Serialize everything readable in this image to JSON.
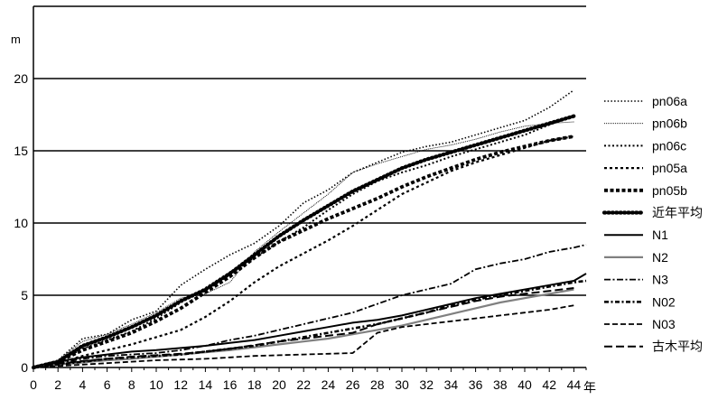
{
  "chart_data": {
    "type": "line",
    "title": "",
    "ylabel": "m",
    "xlabel": "年",
    "xlim": [
      0,
      45
    ],
    "ylim": [
      0,
      25
    ],
    "yticks": [
      0,
      5,
      10,
      15,
      20
    ],
    "xticks": [
      0,
      2,
      4,
      6,
      8,
      10,
      12,
      14,
      16,
      18,
      20,
      22,
      24,
      26,
      28,
      30,
      32,
      34,
      36,
      38,
      40,
      42,
      44
    ],
    "grid": "horizontal",
    "legend_position": "right",
    "series": [
      {
        "name": "pn06a",
        "style": "dotted-fine",
        "color": "#000000",
        "points": [
          [
            0,
            0
          ],
          [
            2,
            0.5
          ],
          [
            4,
            2
          ],
          [
            6,
            2.3
          ],
          [
            8,
            3.3
          ],
          [
            10,
            3.9
          ],
          [
            12,
            5.7
          ],
          [
            14,
            6.8
          ],
          [
            16,
            7.8
          ],
          [
            18,
            8.6
          ],
          [
            20,
            9.8
          ],
          [
            22,
            11.4
          ],
          [
            24,
            12.3
          ],
          [
            26,
            13.5
          ],
          [
            28,
            14.2
          ],
          [
            30,
            14.9
          ],
          [
            32,
            15.3
          ],
          [
            34,
            15.6
          ],
          [
            36,
            16.1
          ],
          [
            38,
            16.6
          ],
          [
            40,
            17.1
          ],
          [
            42,
            18.0
          ],
          [
            44,
            19.2
          ]
        ]
      },
      {
        "name": "pn06b",
        "style": "thin-dotted",
        "color": "#000000",
        "points": [
          [
            0,
            0
          ],
          [
            2,
            0.5
          ],
          [
            4,
            1.8
          ],
          [
            6,
            2.3
          ],
          [
            8,
            3.0
          ],
          [
            10,
            3.8
          ],
          [
            12,
            4.8
          ],
          [
            14,
            5.1
          ],
          [
            16,
            5.9
          ],
          [
            18,
            8.0
          ],
          [
            20,
            9.4
          ],
          [
            22,
            10.7
          ],
          [
            24,
            12.0
          ],
          [
            26,
            13.5
          ],
          [
            28,
            14.1
          ],
          [
            30,
            14.6
          ],
          [
            32,
            15.1
          ],
          [
            34,
            15.4
          ],
          [
            36,
            15.8
          ],
          [
            38,
            16.3
          ],
          [
            40,
            16.7
          ],
          [
            42,
            16.9
          ],
          [
            44,
            17.0
          ]
        ]
      },
      {
        "name": "pn06c",
        "style": "dotted",
        "color": "#000000",
        "points": [
          [
            0,
            0
          ],
          [
            2,
            0.4
          ],
          [
            4,
            1.3
          ],
          [
            6,
            1.9
          ],
          [
            8,
            2.5
          ],
          [
            10,
            3.4
          ],
          [
            12,
            4.5
          ],
          [
            14,
            5.5
          ],
          [
            16,
            6.6
          ],
          [
            18,
            7.6
          ],
          [
            20,
            8.7
          ],
          [
            22,
            9.7
          ],
          [
            24,
            10.9
          ],
          [
            26,
            12.0
          ],
          [
            28,
            12.9
          ],
          [
            30,
            13.5
          ],
          [
            32,
            14.0
          ],
          [
            34,
            14.6
          ],
          [
            36,
            15.1
          ],
          [
            38,
            15.6
          ],
          [
            40,
            16.1
          ],
          [
            42,
            16.8
          ],
          [
            44,
            17.4
          ]
        ]
      },
      {
        "name": "pn05a",
        "style": "dashed-short",
        "color": "#000000",
        "points": [
          [
            0,
            0
          ],
          [
            2,
            0.3
          ],
          [
            4,
            0.8
          ],
          [
            6,
            1.2
          ],
          [
            8,
            1.6
          ],
          [
            10,
            2.1
          ],
          [
            12,
            2.6
          ],
          [
            14,
            3.5
          ],
          [
            16,
            4.6
          ],
          [
            18,
            5.9
          ],
          [
            20,
            7.0
          ],
          [
            22,
            7.9
          ],
          [
            24,
            8.8
          ],
          [
            26,
            9.8
          ],
          [
            28,
            10.9
          ],
          [
            30,
            12.0
          ],
          [
            32,
            12.8
          ],
          [
            34,
            13.6
          ],
          [
            36,
            14.2
          ],
          [
            38,
            14.7
          ],
          [
            40,
            15.2
          ],
          [
            42,
            15.7
          ],
          [
            44,
            16.0
          ]
        ]
      },
      {
        "name": "pn05b",
        "style": "heavy-dashed",
        "color": "#000000",
        "points": [
          [
            0,
            0
          ],
          [
            2,
            0.4
          ],
          [
            4,
            1.2
          ],
          [
            6,
            1.8
          ],
          [
            8,
            2.4
          ],
          [
            10,
            3.2
          ],
          [
            12,
            4.1
          ],
          [
            14,
            5.2
          ],
          [
            16,
            6.3
          ],
          [
            18,
            7.6
          ],
          [
            20,
            8.7
          ],
          [
            22,
            9.5
          ],
          [
            24,
            10.3
          ],
          [
            26,
            11.0
          ],
          [
            28,
            11.7
          ],
          [
            30,
            12.5
          ],
          [
            32,
            13.2
          ],
          [
            34,
            13.8
          ],
          [
            36,
            14.4
          ],
          [
            38,
            14.9
          ],
          [
            40,
            15.3
          ],
          [
            42,
            15.7
          ],
          [
            44,
            16.0
          ]
        ]
      },
      {
        "name": "近年平均",
        "style": "heavy-dotted",
        "color": "#000000",
        "points": [
          [
            0,
            0
          ],
          [
            2,
            0.4
          ],
          [
            4,
            1.5
          ],
          [
            6,
            2.1
          ],
          [
            8,
            2.8
          ],
          [
            10,
            3.6
          ],
          [
            12,
            4.6
          ],
          [
            14,
            5.4
          ],
          [
            16,
            6.5
          ],
          [
            18,
            7.8
          ],
          [
            20,
            9.1
          ],
          [
            22,
            10.2
          ],
          [
            24,
            11.2
          ],
          [
            26,
            12.2
          ],
          [
            28,
            13.0
          ],
          [
            30,
            13.8
          ],
          [
            32,
            14.4
          ],
          [
            34,
            14.9
          ],
          [
            36,
            15.4
          ],
          [
            38,
            15.9
          ],
          [
            40,
            16.4
          ],
          [
            42,
            16.9
          ],
          [
            44,
            17.4
          ]
        ]
      },
      {
        "name": "N1",
        "style": "solid",
        "color": "#000000",
        "points": [
          [
            0,
            0
          ],
          [
            2,
            0.4
          ],
          [
            4,
            0.7
          ],
          [
            6,
            0.9
          ],
          [
            8,
            1.1
          ],
          [
            10,
            1.2
          ],
          [
            12,
            1.35
          ],
          [
            14,
            1.5
          ],
          [
            16,
            1.7
          ],
          [
            18,
            1.9
          ],
          [
            20,
            2.2
          ],
          [
            22,
            2.5
          ],
          [
            24,
            2.8
          ],
          [
            26,
            3.1
          ],
          [
            28,
            3.3
          ],
          [
            30,
            3.6
          ],
          [
            32,
            4.0
          ],
          [
            34,
            4.4
          ],
          [
            36,
            4.8
          ],
          [
            38,
            5.1
          ],
          [
            40,
            5.4
          ],
          [
            42,
            5.7
          ],
          [
            44,
            6.0
          ],
          [
            45,
            6.5
          ]
        ]
      },
      {
        "name": "N2",
        "style": "solid-gray",
        "color": "#808080",
        "points": [
          [
            0,
            0
          ],
          [
            2,
            0.2
          ],
          [
            4,
            0.35
          ],
          [
            6,
            0.5
          ],
          [
            8,
            0.6
          ],
          [
            10,
            0.75
          ],
          [
            12,
            0.9
          ],
          [
            14,
            1.05
          ],
          [
            16,
            1.2
          ],
          [
            18,
            1.4
          ],
          [
            20,
            1.6
          ],
          [
            22,
            1.8
          ],
          [
            24,
            2.0
          ],
          [
            26,
            2.3
          ],
          [
            28,
            2.6
          ],
          [
            30,
            2.9
          ],
          [
            32,
            3.3
          ],
          [
            34,
            3.7
          ],
          [
            36,
            4.1
          ],
          [
            38,
            4.5
          ],
          [
            40,
            4.8
          ],
          [
            42,
            5.1
          ],
          [
            44,
            5.4
          ]
        ]
      },
      {
        "name": "N3",
        "style": "dash-dot",
        "color": "#000000",
        "points": [
          [
            0,
            0
          ],
          [
            2,
            0.3
          ],
          [
            4,
            0.6
          ],
          [
            6,
            0.8
          ],
          [
            8,
            0.9
          ],
          [
            10,
            1.0
          ],
          [
            12,
            1.2
          ],
          [
            14,
            1.5
          ],
          [
            16,
            1.9
          ],
          [
            18,
            2.2
          ],
          [
            20,
            2.6
          ],
          [
            22,
            3.0
          ],
          [
            24,
            3.4
          ],
          [
            26,
            3.8
          ],
          [
            28,
            4.4
          ],
          [
            30,
            5.0
          ],
          [
            32,
            5.4
          ],
          [
            34,
            5.8
          ],
          [
            36,
            6.8
          ],
          [
            38,
            7.2
          ],
          [
            40,
            7.5
          ],
          [
            42,
            8.0
          ],
          [
            44,
            8.3
          ],
          [
            45,
            8.5
          ]
        ]
      },
      {
        "name": "N02",
        "style": "dash-dot-heavy",
        "color": "#000000",
        "points": [
          [
            0,
            0
          ],
          [
            2,
            0.2
          ],
          [
            4,
            0.4
          ],
          [
            6,
            0.6
          ],
          [
            8,
            0.7
          ],
          [
            10,
            0.8
          ],
          [
            12,
            0.9
          ],
          [
            14,
            1.1
          ],
          [
            16,
            1.3
          ],
          [
            18,
            1.5
          ],
          [
            20,
            1.8
          ],
          [
            22,
            2.1
          ],
          [
            24,
            2.4
          ],
          [
            26,
            2.7
          ],
          [
            28,
            3.0
          ],
          [
            30,
            3.4
          ],
          [
            32,
            3.8
          ],
          [
            34,
            4.3
          ],
          [
            36,
            4.7
          ],
          [
            38,
            5.0
          ],
          [
            40,
            5.3
          ],
          [
            42,
            5.6
          ],
          [
            44,
            5.9
          ],
          [
            45,
            6.0
          ]
        ]
      },
      {
        "name": "N03",
        "style": "dashed",
        "color": "#000000",
        "points": [
          [
            0,
            0
          ],
          [
            2,
            0.1
          ],
          [
            4,
            0.2
          ],
          [
            6,
            0.3
          ],
          [
            8,
            0.4
          ],
          [
            10,
            0.5
          ],
          [
            12,
            0.55
          ],
          [
            14,
            0.6
          ],
          [
            16,
            0.7
          ],
          [
            18,
            0.8
          ],
          [
            20,
            0.85
          ],
          [
            22,
            0.9
          ],
          [
            24,
            0.95
          ],
          [
            26,
            1.0
          ],
          [
            28,
            2.4
          ],
          [
            30,
            2.8
          ],
          [
            32,
            3.0
          ],
          [
            34,
            3.2
          ],
          [
            36,
            3.4
          ],
          [
            38,
            3.6
          ],
          [
            40,
            3.8
          ],
          [
            42,
            4.0
          ],
          [
            44,
            4.3
          ]
        ]
      },
      {
        "name": "古木平均",
        "style": "long-dashed",
        "color": "#000000",
        "points": [
          [
            0,
            0
          ],
          [
            2,
            0.25
          ],
          [
            4,
            0.45
          ],
          [
            6,
            0.6
          ],
          [
            8,
            0.75
          ],
          [
            10,
            0.85
          ],
          [
            12,
            0.95
          ],
          [
            14,
            1.1
          ],
          [
            16,
            1.3
          ],
          [
            18,
            1.55
          ],
          [
            20,
            1.8
          ],
          [
            22,
            2.0
          ],
          [
            24,
            2.2
          ],
          [
            26,
            2.4
          ],
          [
            28,
            3.0
          ],
          [
            30,
            3.4
          ],
          [
            32,
            3.8
          ],
          [
            34,
            4.2
          ],
          [
            36,
            4.6
          ],
          [
            38,
            4.9
          ],
          [
            40,
            5.1
          ],
          [
            42,
            5.3
          ],
          [
            44,
            5.5
          ]
        ]
      }
    ]
  }
}
